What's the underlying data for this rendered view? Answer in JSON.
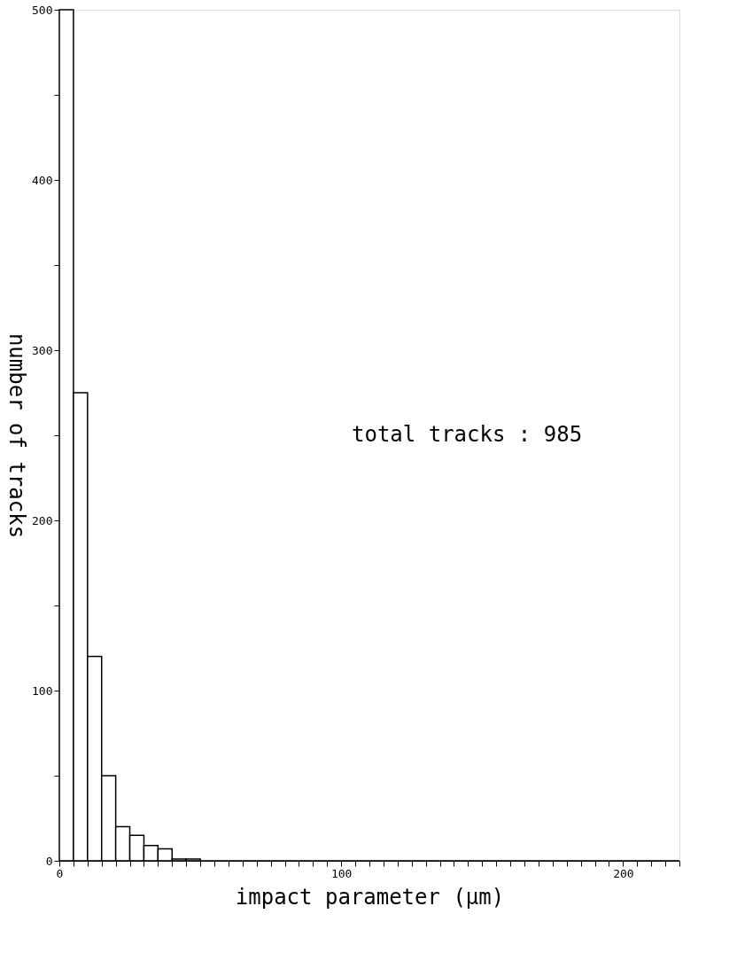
{
  "chart_data": {
    "type": "histogram",
    "xlabel": "impact parameter (μm)",
    "ylabel": "number of tracks",
    "annotations": [
      "total tracks : 985"
    ],
    "bins": [
      0,
      5,
      10,
      15,
      20,
      25,
      30,
      35,
      40,
      45,
      50,
      55,
      60,
      65,
      70,
      75,
      80,
      85,
      90,
      95,
      100,
      105,
      110,
      115,
      120,
      125,
      130,
      135,
      140,
      145,
      150,
      155,
      160,
      165,
      170,
      175,
      180,
      185,
      190,
      195,
      200,
      205,
      210,
      215,
      220
    ],
    "values": [
      500,
      275,
      120,
      50,
      20,
      15,
      9,
      7,
      1,
      1,
      0,
      0,
      0,
      0,
      0,
      0,
      0,
      0,
      0,
      0,
      0,
      0,
      0,
      0,
      0,
      0,
      0,
      0,
      0,
      0,
      0,
      0,
      0,
      0,
      0,
      0,
      0,
      0,
      0,
      0,
      0,
      0,
      0,
      0
    ],
    "color": "#000000",
    "xlim": [
      0,
      220
    ],
    "ylim": [
      0,
      500
    ],
    "xticks": [
      0,
      {
        "value": 5,
        "label": null
      },
      {
        "value": 10,
        "label": null
      },
      {
        "value": 15,
        "label": null
      },
      {
        "value": 20,
        "label": null
      },
      {
        "value": 25,
        "label": null
      },
      {
        "value": 30,
        "label": null
      },
      {
        "value": 35,
        "label": null
      },
      {
        "value": 40,
        "label": null
      },
      {
        "value": 45,
        "label": null
      },
      {
        "value": 50,
        "label": null
      },
      {
        "value": 55,
        "label": null
      },
      {
        "value": 60,
        "label": null
      },
      {
        "value": 65,
        "label": null
      },
      {
        "value": 70,
        "label": null
      },
      {
        "value": 75,
        "label": null
      },
      {
        "value": 80,
        "label": null
      },
      {
        "value": 85,
        "label": null
      },
      {
        "value": 90,
        "label": null
      },
      {
        "value": 95,
        "label": null
      },
      100,
      {
        "value": 105,
        "label": null
      },
      {
        "value": 110,
        "label": null
      },
      {
        "value": 115,
        "label": null
      },
      {
        "value": 120,
        "label": null
      },
      {
        "value": 125,
        "label": null
      },
      {
        "value": 130,
        "label": null
      },
      {
        "value": 135,
        "label": null
      },
      {
        "value": 140,
        "label": null
      },
      {
        "value": 145,
        "label": null
      },
      {
        "value": 150,
        "label": null
      },
      {
        "value": 155,
        "label": null
      },
      {
        "value": 160,
        "label": null
      },
      {
        "value": 165,
        "label": null
      },
      {
        "value": 170,
        "label": null
      },
      {
        "value": 175,
        "label": null
      },
      {
        "value": 180,
        "label": null
      },
      {
        "value": 185,
        "label": null
      },
      {
        "value": 190,
        "label": null
      },
      {
        "value": 195,
        "label": null
      },
      200,
      {
        "value": 205,
        "label": null
      },
      {
        "value": 210,
        "label": null
      },
      {
        "value": 215,
        "label": null
      },
      {
        "value": 220,
        "label": null
      }
    ],
    "yticks": [
      0,
      {
        "value": 50,
        "label": null
      },
      100,
      {
        "value": 150,
        "label": null
      },
      200,
      {
        "value": 250,
        "label": null
      },
      300,
      {
        "value": 350,
        "label": null
      },
      400,
      {
        "value": 450,
        "label": null
      },
      500
    ],
    "grid": false
  }
}
